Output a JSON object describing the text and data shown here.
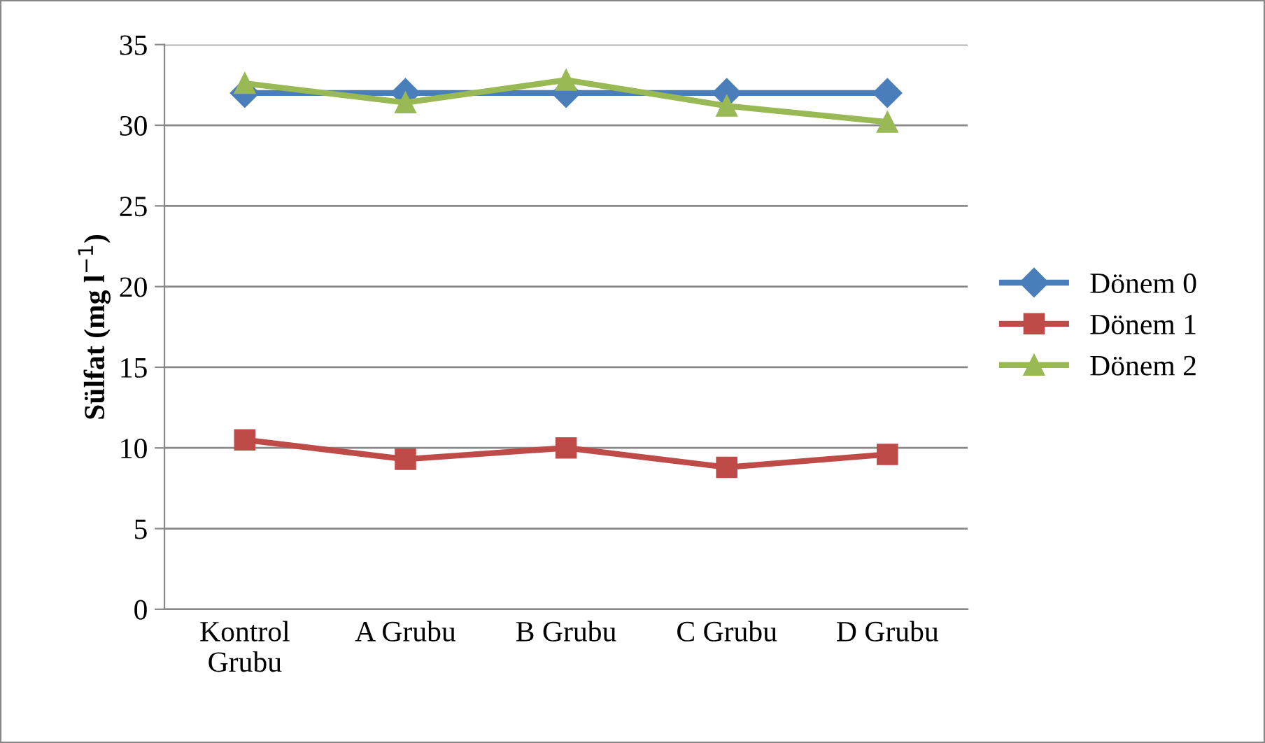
{
  "chart_data": {
    "type": "line",
    "ylabel": "Sülfat (mg l$^{−1}$)",
    "categories": [
      "Kontrol\nGrubu",
      "A Grubu",
      "B Grubu",
      "C Grubu",
      "D Grubu"
    ],
    "series": [
      {
        "name": "Dönem 0",
        "color": "#4a7ebb",
        "marker": "diamond",
        "values": [
          32,
          32,
          32,
          32,
          32
        ]
      },
      {
        "name": "Dönem 1",
        "color": "#be4b48",
        "marker": "square",
        "values": [
          10.5,
          9.3,
          10.0,
          8.8,
          9.6
        ]
      },
      {
        "name": "Dönem 2",
        "color": "#98b954",
        "marker": "triangle",
        "values": [
          32.6,
          31.4,
          32.8,
          31.2,
          30.2
        ]
      }
    ],
    "ylim": [
      0,
      35
    ],
    "yticks": [
      0,
      5,
      10,
      15,
      20,
      25,
      30,
      35
    ],
    "grid": "y",
    "legend": "right",
    "line_style": "solid"
  }
}
